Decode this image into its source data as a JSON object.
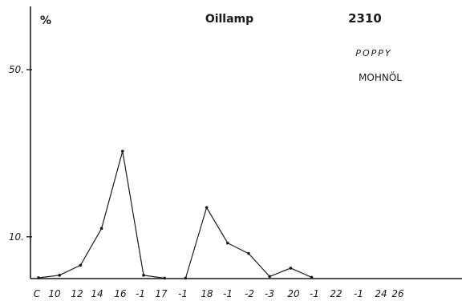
{
  "chart_data": {
    "type": "line",
    "title": "Oillamp",
    "sample_number": "2310",
    "ylabel": "%",
    "annotations": [
      "POPPY",
      "MOHNÖL"
    ],
    "ylim": [
      0,
      60
    ],
    "yticks": [
      {
        "value": 10,
        "label": "10."
      },
      {
        "value": 50,
        "label": "50."
      }
    ],
    "x_tick_labels": [
      "C",
      "10",
      "12",
      "14",
      "16",
      "-1",
      "17",
      "-1",
      "18",
      "-1",
      "-2",
      "-3",
      "20",
      "-1",
      "22",
      "-1",
      "24",
      "26"
    ],
    "segments": [
      {
        "x": [
          0,
          1,
          2,
          3,
          4,
          5,
          6
        ],
        "y": [
          0.2,
          0.8,
          3.2,
          12.0,
          30.5,
          0.8,
          0.1
        ]
      },
      {
        "x": [
          7,
          8,
          9,
          10,
          11,
          12,
          13
        ],
        "y": [
          0.1,
          17.0,
          8.5,
          6.0,
          0.5,
          2.5,
          0.3
        ]
      }
    ]
  }
}
